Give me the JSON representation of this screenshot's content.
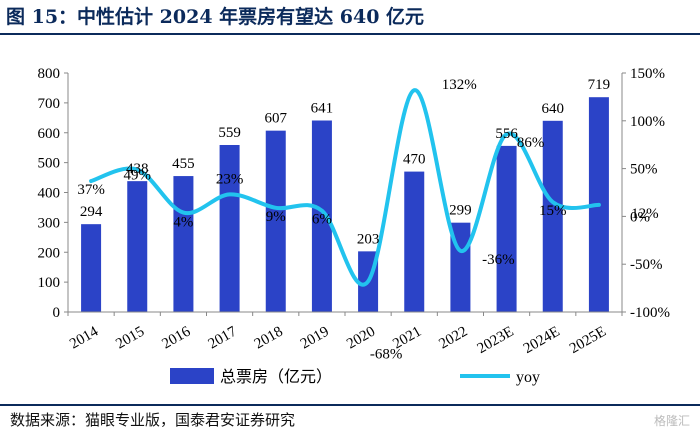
{
  "title": "图 15：中性估计 2024 年票房有望达 640 亿元",
  "source": "数据来源：猫眼专业版，国泰君安证券研究",
  "watermark": "格隆汇",
  "colors": {
    "bar": "#2b43c7",
    "line": "#22c3ee",
    "title": "#0b2a5b"
  },
  "chart_data": {
    "type": "bar",
    "categories": [
      "2014",
      "2015",
      "2016",
      "2017",
      "2018",
      "2019",
      "2020",
      "2021",
      "2022",
      "2023E",
      "2024E",
      "2025E"
    ],
    "series": [
      {
        "name": "总票房（亿元）",
        "type": "bar",
        "axis": "left",
        "values": [
          294,
          438,
          455,
          559,
          607,
          641,
          203,
          470,
          299,
          556,
          640,
          719
        ],
        "labels": [
          "294",
          "438",
          "455",
          "559",
          "607",
          "641",
          "203",
          "470",
          "299",
          "556",
          "640",
          "719"
        ]
      },
      {
        "name": "yoy",
        "type": "line",
        "axis": "right",
        "values": [
          37,
          49,
          4,
          23,
          9,
          6,
          -68,
          132,
          -36,
          86,
          15,
          12
        ],
        "labels": [
          "37%",
          "49%",
          "4%",
          "23%",
          "9%",
          "6%",
          "-68%",
          "132%",
          "-36%",
          "86%",
          "15%",
          "12%"
        ]
      }
    ],
    "y_left": {
      "min": 0,
      "max": 800,
      "step": 100,
      "ticks": [
        "0",
        "100",
        "200",
        "300",
        "400",
        "500",
        "600",
        "700",
        "800"
      ]
    },
    "y_right": {
      "min": -100,
      "max": 150,
      "step": 50,
      "ticks": [
        "-100%",
        "-50%",
        "0%",
        "50%",
        "100%",
        "150%"
      ]
    },
    "legend": {
      "position": "bottom"
    }
  }
}
